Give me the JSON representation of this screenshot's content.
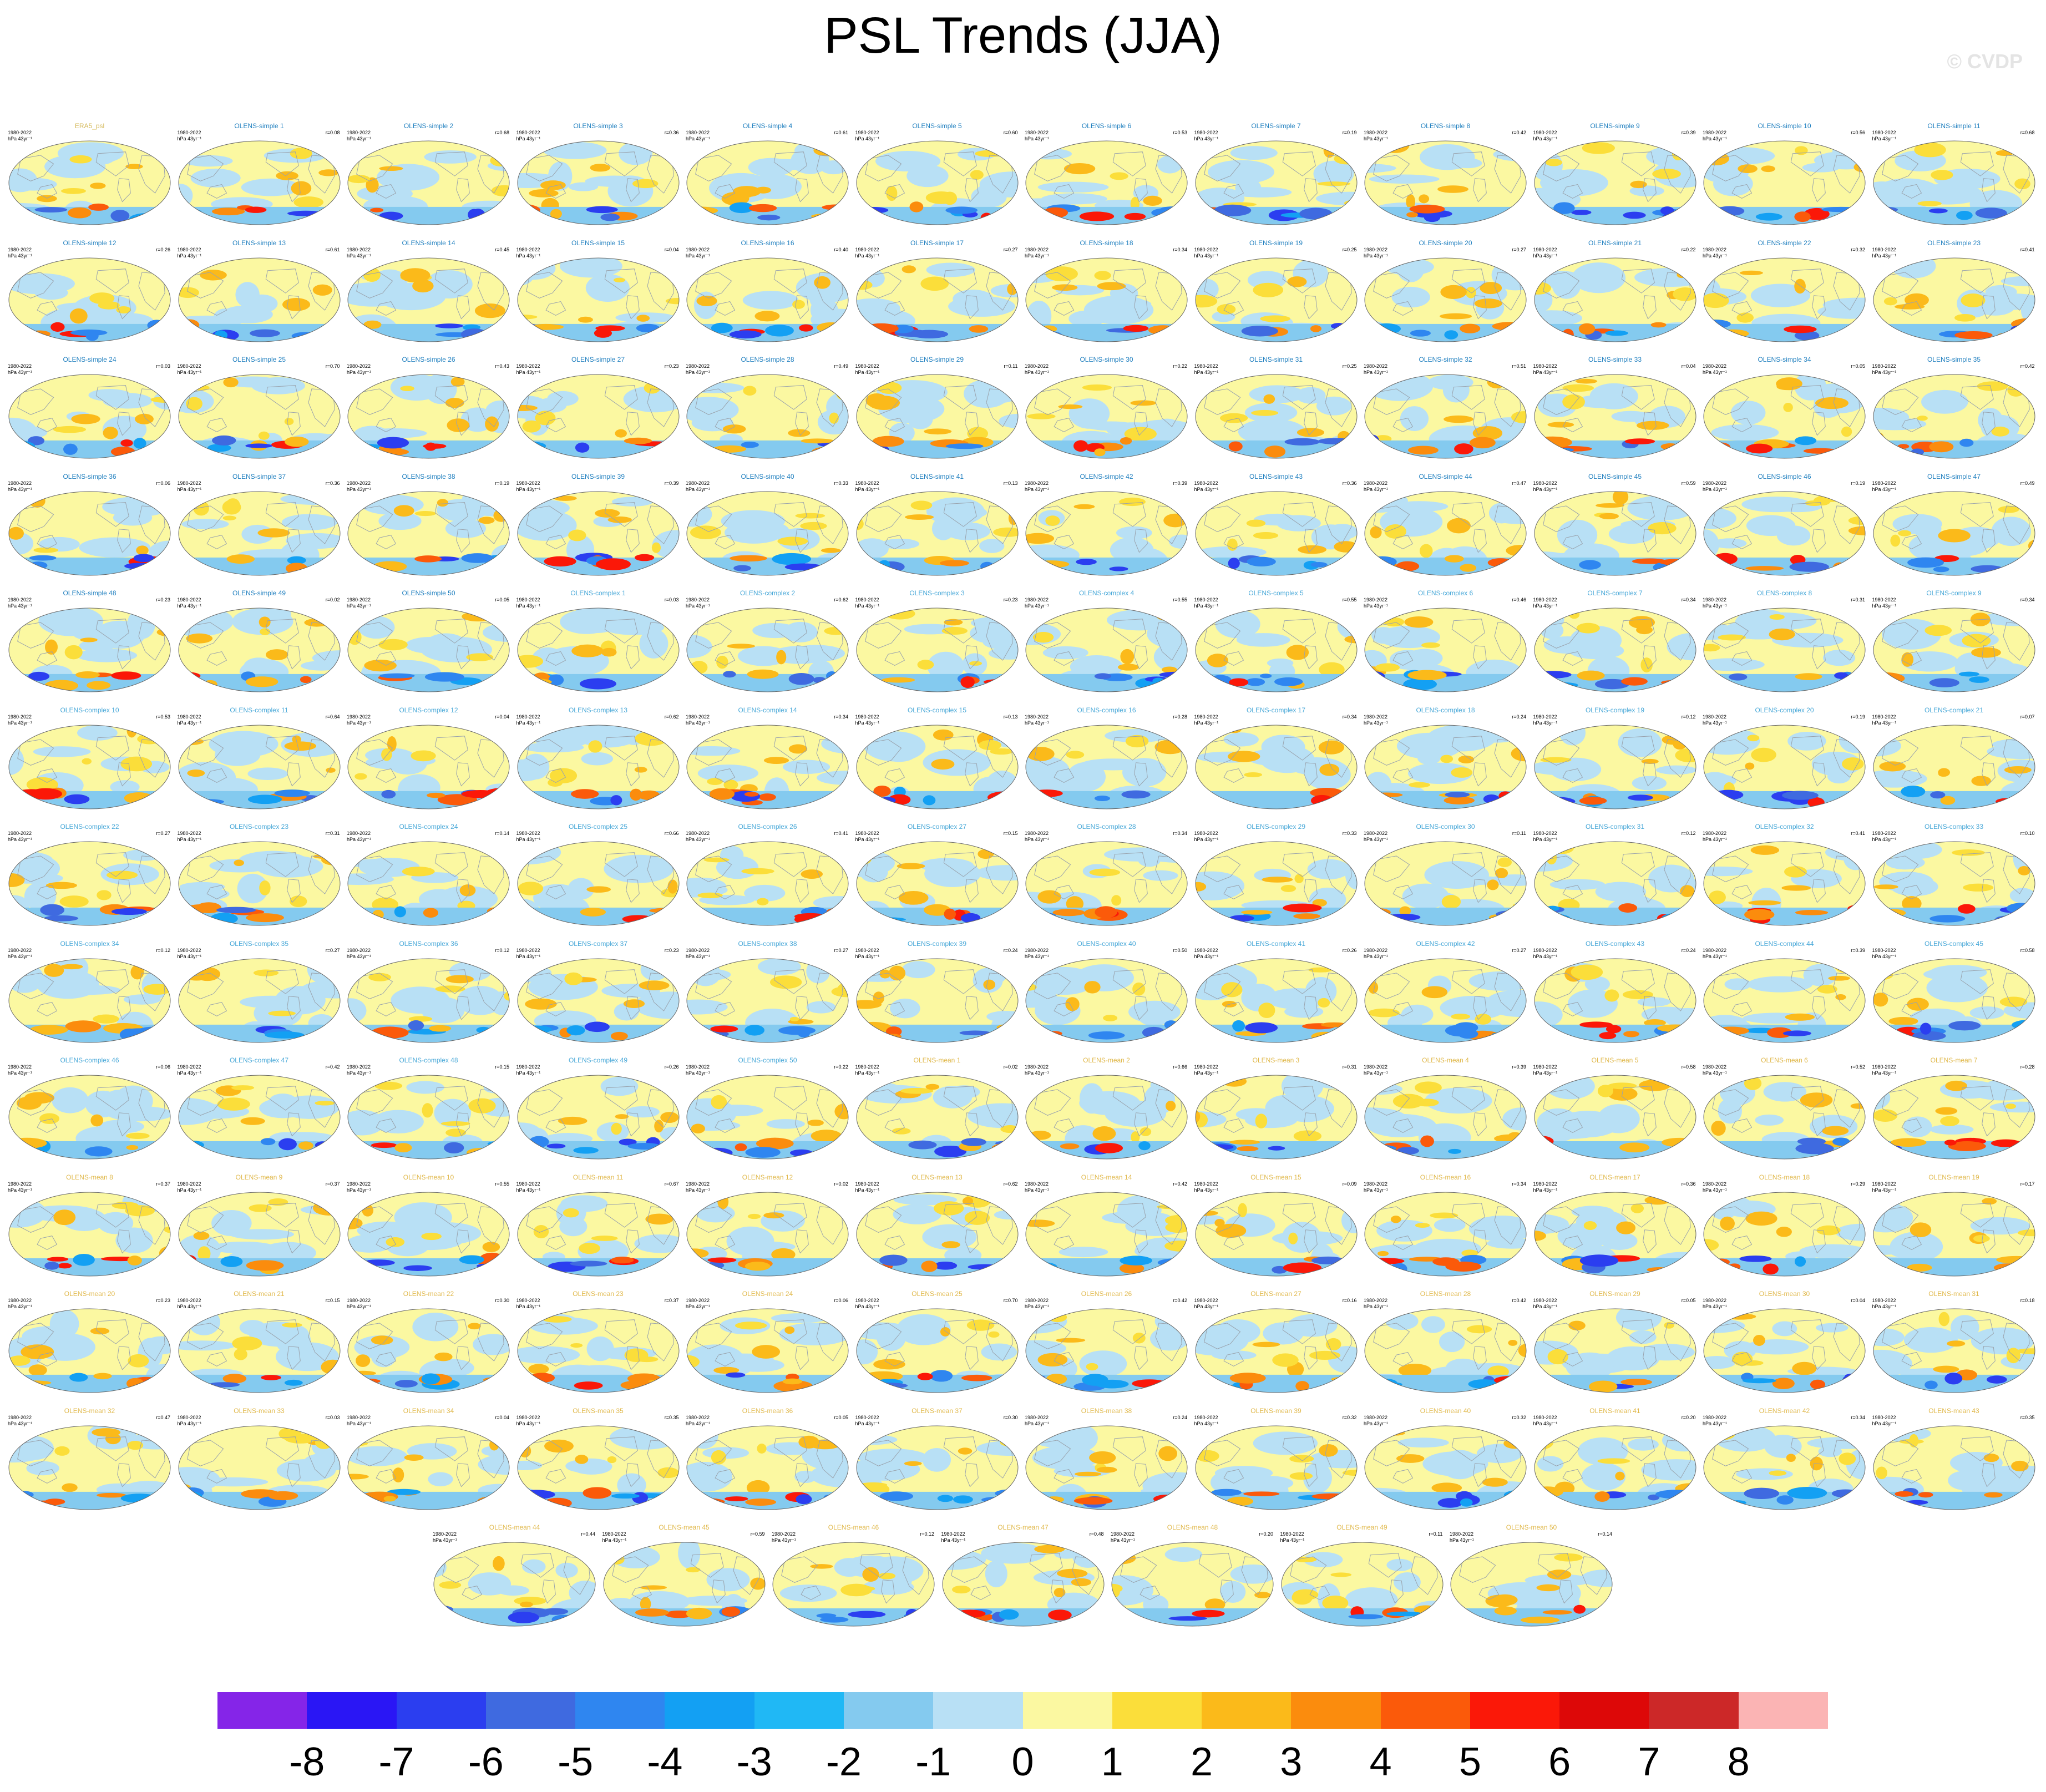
{
  "title": "PSL Trends (JJA)",
  "watermark": "© CVDP",
  "panel_meta": {
    "years": "1980-2022",
    "units": "hPa 43yr⁻¹"
  },
  "colors": {
    "simple_title": "#1f7fbf",
    "complex_title": "#48a8d8",
    "mean_title": "#e0b84a",
    "land": "#ffffff",
    "ocean_outline": "#9aa3ad"
  },
  "panels": [
    {
      "title": "ERA5_psl",
      "type": "obs",
      "r": ""
    },
    {
      "title": "OLENS-simple 1",
      "type": "simple",
      "r": "r=0.08"
    },
    {
      "title": "OLENS-simple 2",
      "type": "simple",
      "r": "r=0.68"
    },
    {
      "title": "OLENS-simple 3",
      "type": "simple",
      "r": "r=0.36"
    },
    {
      "title": "OLENS-simple 4",
      "type": "simple",
      "r": "r=0.61"
    },
    {
      "title": "OLENS-simple 5",
      "type": "simple",
      "r": "r=0.60"
    },
    {
      "title": "OLENS-simple 6",
      "type": "simple",
      "r": "r=0.53"
    },
    {
      "title": "OLENS-simple 7",
      "type": "simple",
      "r": "r=0.19"
    },
    {
      "title": "OLENS-simple 8",
      "type": "simple",
      "r": "r=0.42"
    },
    {
      "title": "OLENS-simple 9",
      "type": "simple",
      "r": "r=0.39"
    },
    {
      "title": "OLENS-simple 10",
      "type": "simple",
      "r": "r=0.56"
    },
    {
      "title": "OLENS-simple 11",
      "type": "simple",
      "r": "r=0.68"
    },
    {
      "title": "OLENS-simple 12",
      "type": "simple",
      "r": "r=0.26"
    },
    {
      "title": "OLENS-simple 13",
      "type": "simple",
      "r": "r=0.61"
    },
    {
      "title": "OLENS-simple 14",
      "type": "simple",
      "r": "r=0.45"
    },
    {
      "title": "OLENS-simple 15",
      "type": "simple",
      "r": "r=0.04"
    },
    {
      "title": "OLENS-simple 16",
      "type": "simple",
      "r": "r=0.40"
    },
    {
      "title": "OLENS-simple 17",
      "type": "simple",
      "r": "r=0.27"
    },
    {
      "title": "OLENS-simple 18",
      "type": "simple",
      "r": "r=0.34"
    },
    {
      "title": "OLENS-simple 19",
      "type": "simple",
      "r": "r=0.25"
    },
    {
      "title": "OLENS-simple 20",
      "type": "simple",
      "r": "r=0.27"
    },
    {
      "title": "OLENS-simple 21",
      "type": "simple",
      "r": "r=0.22"
    },
    {
      "title": "OLENS-simple 22",
      "type": "simple",
      "r": "r=0.32"
    },
    {
      "title": "OLENS-simple 23",
      "type": "simple",
      "r": "r=0.41"
    },
    {
      "title": "OLENS-simple 24",
      "type": "simple",
      "r": "r=0.03"
    },
    {
      "title": "OLENS-simple 25",
      "type": "simple",
      "r": "r=0.70"
    },
    {
      "title": "OLENS-simple 26",
      "type": "simple",
      "r": "r=0.43"
    },
    {
      "title": "OLENS-simple 27",
      "type": "simple",
      "r": "r=0.23"
    },
    {
      "title": "OLENS-simple 28",
      "type": "simple",
      "r": "r=0.49"
    },
    {
      "title": "OLENS-simple 29",
      "type": "simple",
      "r": "r=0.11"
    },
    {
      "title": "OLENS-simple 30",
      "type": "simple",
      "r": "r=0.22"
    },
    {
      "title": "OLENS-simple 31",
      "type": "simple",
      "r": "r=0.25"
    },
    {
      "title": "OLENS-simple 32",
      "type": "simple",
      "r": "r=0.51"
    },
    {
      "title": "OLENS-simple 33",
      "type": "simple",
      "r": "r=0.04"
    },
    {
      "title": "OLENS-simple 34",
      "type": "simple",
      "r": "r=0.05"
    },
    {
      "title": "OLENS-simple 35",
      "type": "simple",
      "r": "r=0.42"
    },
    {
      "title": "OLENS-simple 36",
      "type": "simple",
      "r": "r=0.06"
    },
    {
      "title": "OLENS-simple 37",
      "type": "simple",
      "r": "r=0.36"
    },
    {
      "title": "OLENS-simple 38",
      "type": "simple",
      "r": "r=0.19"
    },
    {
      "title": "OLENS-simple 39",
      "type": "simple",
      "r": "r=0.39"
    },
    {
      "title": "OLENS-simple 40",
      "type": "simple",
      "r": "r=0.33"
    },
    {
      "title": "OLENS-simple 41",
      "type": "simple",
      "r": "r=0.13"
    },
    {
      "title": "OLENS-simple 42",
      "type": "simple",
      "r": "r=0.39"
    },
    {
      "title": "OLENS-simple 43",
      "type": "simple",
      "r": "r=0.36"
    },
    {
      "title": "OLENS-simple 44",
      "type": "simple",
      "r": "r=0.47"
    },
    {
      "title": "OLENS-simple 45",
      "type": "simple",
      "r": "r=0.59"
    },
    {
      "title": "OLENS-simple 46",
      "type": "simple",
      "r": "r=0.19"
    },
    {
      "title": "OLENS-simple 47",
      "type": "simple",
      "r": "r=0.49"
    },
    {
      "title": "OLENS-simple 48",
      "type": "simple",
      "r": "r=0.23"
    },
    {
      "title": "OLENS-simple 49",
      "type": "simple",
      "r": "r=0.02"
    },
    {
      "title": "OLENS-simple 50",
      "type": "simple",
      "r": "r=0.05"
    },
    {
      "title": "OLENS-complex 1",
      "type": "complex",
      "r": "r=0.03"
    },
    {
      "title": "OLENS-complex 2",
      "type": "complex",
      "r": "r=0.62"
    },
    {
      "title": "OLENS-complex 3",
      "type": "complex",
      "r": "r=0.23"
    },
    {
      "title": "OLENS-complex 4",
      "type": "complex",
      "r": "r=0.55"
    },
    {
      "title": "OLENS-complex 5",
      "type": "complex",
      "r": "r=0.55"
    },
    {
      "title": "OLENS-complex 6",
      "type": "complex",
      "r": "r=0.46"
    },
    {
      "title": "OLENS-complex 7",
      "type": "complex",
      "r": "r=0.34"
    },
    {
      "title": "OLENS-complex 8",
      "type": "complex",
      "r": "r=0.31"
    },
    {
      "title": "OLENS-complex 9",
      "type": "complex",
      "r": "r=0.34"
    },
    {
      "title": "OLENS-complex 10",
      "type": "complex",
      "r": "r=0.53"
    },
    {
      "title": "OLENS-complex 11",
      "type": "complex",
      "r": "r=0.64"
    },
    {
      "title": "OLENS-complex 12",
      "type": "complex",
      "r": "r=0.04"
    },
    {
      "title": "OLENS-complex 13",
      "type": "complex",
      "r": "r=0.62"
    },
    {
      "title": "OLENS-complex 14",
      "type": "complex",
      "r": "r=0.34"
    },
    {
      "title": "OLENS-complex 15",
      "type": "complex",
      "r": "r=0.13"
    },
    {
      "title": "OLENS-complex 16",
      "type": "complex",
      "r": "r=0.28"
    },
    {
      "title": "OLENS-complex 17",
      "type": "complex",
      "r": "r=0.34"
    },
    {
      "title": "OLENS-complex 18",
      "type": "complex",
      "r": "r=0.24"
    },
    {
      "title": "OLENS-complex 19",
      "type": "complex",
      "r": "r=0.12"
    },
    {
      "title": "OLENS-complex 20",
      "type": "complex",
      "r": "r=0.19"
    },
    {
      "title": "OLENS-complex 21",
      "type": "complex",
      "r": "r=0.07"
    },
    {
      "title": "OLENS-complex 22",
      "type": "complex",
      "r": "r=0.27"
    },
    {
      "title": "OLENS-complex 23",
      "type": "complex",
      "r": "r=0.31"
    },
    {
      "title": "OLENS-complex 24",
      "type": "complex",
      "r": "r=0.14"
    },
    {
      "title": "OLENS-complex 25",
      "type": "complex",
      "r": "r=0.66"
    },
    {
      "title": "OLENS-complex 26",
      "type": "complex",
      "r": "r=0.41"
    },
    {
      "title": "OLENS-complex 27",
      "type": "complex",
      "r": "r=0.15"
    },
    {
      "title": "OLENS-complex 28",
      "type": "complex",
      "r": "r=0.34"
    },
    {
      "title": "OLENS-complex 29",
      "type": "complex",
      "r": "r=0.33"
    },
    {
      "title": "OLENS-complex 30",
      "type": "complex",
      "r": "r=0.11"
    },
    {
      "title": "OLENS-complex 31",
      "type": "complex",
      "r": "r=0.12"
    },
    {
      "title": "OLENS-complex 32",
      "type": "complex",
      "r": "r=0.41"
    },
    {
      "title": "OLENS-complex 33",
      "type": "complex",
      "r": "r=0.10"
    },
    {
      "title": "OLENS-complex 34",
      "type": "complex",
      "r": "r=0.12"
    },
    {
      "title": "OLENS-complex 35",
      "type": "complex",
      "r": "r=0.27"
    },
    {
      "title": "OLENS-complex 36",
      "type": "complex",
      "r": "r=0.12"
    },
    {
      "title": "OLENS-complex 37",
      "type": "complex",
      "r": "r=0.23"
    },
    {
      "title": "OLENS-complex 38",
      "type": "complex",
      "r": "r=0.27"
    },
    {
      "title": "OLENS-complex 39",
      "type": "complex",
      "r": "r=0.24"
    },
    {
      "title": "OLENS-complex 40",
      "type": "complex",
      "r": "r=0.50"
    },
    {
      "title": "OLENS-complex 41",
      "type": "complex",
      "r": "r=0.26"
    },
    {
      "title": "OLENS-complex 42",
      "type": "complex",
      "r": "r=0.27"
    },
    {
      "title": "OLENS-complex 43",
      "type": "complex",
      "r": "r=0.24"
    },
    {
      "title": "OLENS-complex 44",
      "type": "complex",
      "r": "r=0.39"
    },
    {
      "title": "OLENS-complex 45",
      "type": "complex",
      "r": "r=0.58"
    },
    {
      "title": "OLENS-complex 46",
      "type": "complex",
      "r": "r=0.06"
    },
    {
      "title": "OLENS-complex 47",
      "type": "complex",
      "r": "r=0.42"
    },
    {
      "title": "OLENS-complex 48",
      "type": "complex",
      "r": "r=0.15"
    },
    {
      "title": "OLENS-complex 49",
      "type": "complex",
      "r": "r=0.26"
    },
    {
      "title": "OLENS-complex 50",
      "type": "complex",
      "r": "r=0.22"
    },
    {
      "title": "OLENS-mean 1",
      "type": "mean",
      "r": "r=0.02"
    },
    {
      "title": "OLENS-mean 2",
      "type": "mean",
      "r": "r=0.66"
    },
    {
      "title": "OLENS-mean 3",
      "type": "mean",
      "r": "r=0.31"
    },
    {
      "title": "OLENS-mean 4",
      "type": "mean",
      "r": "r=0.39"
    },
    {
      "title": "OLENS-mean 5",
      "type": "mean",
      "r": "r=0.58"
    },
    {
      "title": "OLENS-mean 6",
      "type": "mean",
      "r": "r=0.52"
    },
    {
      "title": "OLENS-mean 7",
      "type": "mean",
      "r": "r=0.28"
    },
    {
      "title": "OLENS-mean 8",
      "type": "mean",
      "r": "r=0.37"
    },
    {
      "title": "OLENS-mean 9",
      "type": "mean",
      "r": "r=0.37"
    },
    {
      "title": "OLENS-mean 10",
      "type": "mean",
      "r": "r=0.55"
    },
    {
      "title": "OLENS-mean 11",
      "type": "mean",
      "r": "r=0.67"
    },
    {
      "title": "OLENS-mean 12",
      "type": "mean",
      "r": "r=0.02"
    },
    {
      "title": "OLENS-mean 13",
      "type": "mean",
      "r": "r=0.62"
    },
    {
      "title": "OLENS-mean 14",
      "type": "mean",
      "r": "r=0.42"
    },
    {
      "title": "OLENS-mean 15",
      "type": "mean",
      "r": "r=0.09"
    },
    {
      "title": "OLENS-mean 16",
      "type": "mean",
      "r": "r=0.34"
    },
    {
      "title": "OLENS-mean 17",
      "type": "mean",
      "r": "r=0.36"
    },
    {
      "title": "OLENS-mean 18",
      "type": "mean",
      "r": "r=0.29"
    },
    {
      "title": "OLENS-mean 19",
      "type": "mean",
      "r": "r=0.17"
    },
    {
      "title": "OLENS-mean 20",
      "type": "mean",
      "r": "r=0.23"
    },
    {
      "title": "OLENS-mean 21",
      "type": "mean",
      "r": "r=0.15"
    },
    {
      "title": "OLENS-mean 22",
      "type": "mean",
      "r": "r=0.30"
    },
    {
      "title": "OLENS-mean 23",
      "type": "mean",
      "r": "r=0.37"
    },
    {
      "title": "OLENS-mean 24",
      "type": "mean",
      "r": "r=0.06"
    },
    {
      "title": "OLENS-mean 25",
      "type": "mean",
      "r": "r=0.70"
    },
    {
      "title": "OLENS-mean 26",
      "type": "mean",
      "r": "r=0.42"
    },
    {
      "title": "OLENS-mean 27",
      "type": "mean",
      "r": "r=0.16"
    },
    {
      "title": "OLENS-mean 28",
      "type": "mean",
      "r": "r=0.42"
    },
    {
      "title": "OLENS-mean 29",
      "type": "mean",
      "r": "r=0.05"
    },
    {
      "title": "OLENS-mean 30",
      "type": "mean",
      "r": "r=0.04"
    },
    {
      "title": "OLENS-mean 31",
      "type": "mean",
      "r": "r=0.18"
    },
    {
      "title": "OLENS-mean 32",
      "type": "mean",
      "r": "r=0.47"
    },
    {
      "title": "OLENS-mean 33",
      "type": "mean",
      "r": "r=0.03"
    },
    {
      "title": "OLENS-mean 34",
      "type": "mean",
      "r": "r=0.04"
    },
    {
      "title": "OLENS-mean 35",
      "type": "mean",
      "r": "r=0.35"
    },
    {
      "title": "OLENS-mean 36",
      "type": "mean",
      "r": "r=0.05"
    },
    {
      "title": "OLENS-mean 37",
      "type": "mean",
      "r": "r=0.30"
    },
    {
      "title": "OLENS-mean 38",
      "type": "mean",
      "r": "r=0.24"
    },
    {
      "title": "OLENS-mean 39",
      "type": "mean",
      "r": "r=0.32"
    },
    {
      "title": "OLENS-mean 40",
      "type": "mean",
      "r": "r=0.32"
    },
    {
      "title": "OLENS-mean 41",
      "type": "mean",
      "r": "r=0.20"
    },
    {
      "title": "OLENS-mean 42",
      "type": "mean",
      "r": "r=0.34"
    },
    {
      "title": "OLENS-mean 43",
      "type": "mean",
      "r": "r=0.35"
    },
    {
      "title": "OLENS-mean 44",
      "type": "mean",
      "r": "r=0.44"
    },
    {
      "title": "OLENS-mean 45",
      "type": "mean",
      "r": "r=0.59"
    },
    {
      "title": "OLENS-mean 46",
      "type": "mean",
      "r": "r=0.12"
    },
    {
      "title": "OLENS-mean 47",
      "type": "mean",
      "r": "r=0.48"
    },
    {
      "title": "OLENS-mean 48",
      "type": "mean",
      "r": "r=0.20"
    },
    {
      "title": "OLENS-mean 49",
      "type": "mean",
      "r": "r=0.11"
    },
    {
      "title": "OLENS-mean 50",
      "type": "mean",
      "r": "r=0.14"
    }
  ],
  "chart_data": {
    "type": "heatmap",
    "title": "PSL Trends (JJA)",
    "field": "sea level pressure trend",
    "period": "1980-2022",
    "season": "JJA",
    "units": "hPa 43yr⁻¹",
    "projection": "Robinson (global)",
    "n_panels": 151,
    "layout": {
      "columns": 12,
      "full_rows": 12,
      "last_row_panels": 7
    },
    "colorbar": {
      "levels": [
        -8,
        -7,
        -6,
        -5,
        -4,
        -3,
        -2,
        -1,
        0,
        1,
        2,
        3,
        4,
        5,
        6,
        7,
        8
      ],
      "tick_labels": [
        "-8",
        "-7",
        "-6",
        "-5",
        "-4",
        "-3",
        "-2",
        "-1",
        "0",
        "1",
        "2",
        "3",
        "4",
        "5",
        "6",
        "7",
        "8"
      ],
      "colors": [
        "#8525e8",
        "#2a16f5",
        "#2b3ef0",
        "#3f6ae0",
        "#2f86f0",
        "#13a0f3",
        "#20b8f5",
        "#84caef",
        "#b8e0f5",
        "#fbf8a1",
        "#fbde3a",
        "#fbba1a",
        "#fb8c0d",
        "#fb5a0a",
        "#fb1808",
        "#dd0808",
        "#cc2828",
        "#fbb4b4"
      ]
    },
    "typical_pattern": "Mostly weak trends (-1 to 1 hPa) over most of the globe; strongest anomalies (blue negative, red positive) in the Southern Ocean band near 60°S; weak positive trends over the North Pacific/Atlantic."
  }
}
